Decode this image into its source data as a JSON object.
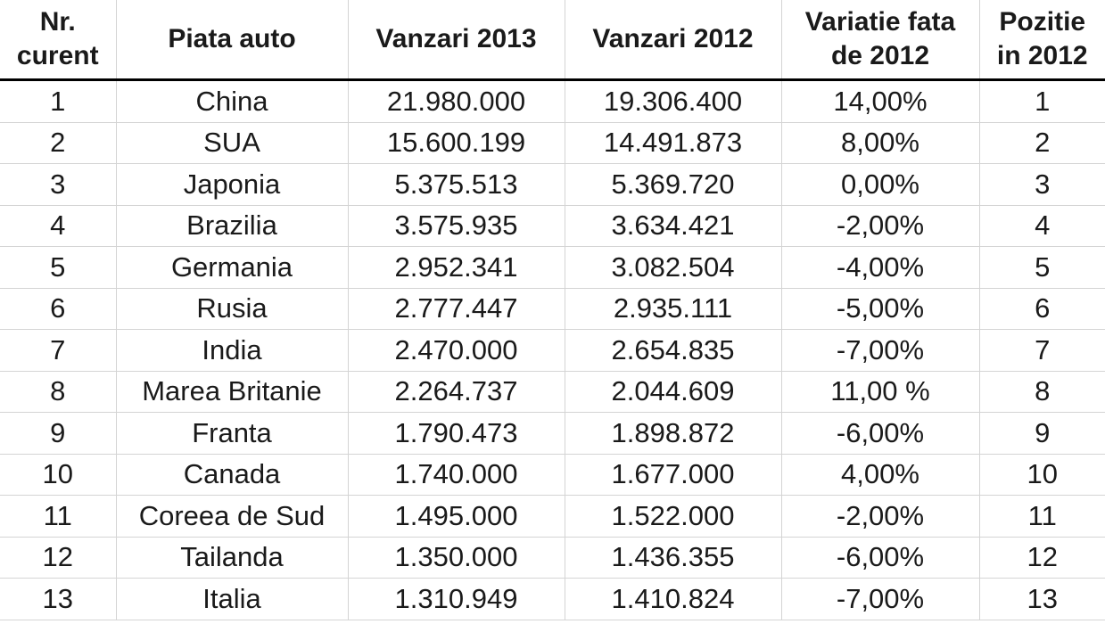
{
  "table": {
    "headers": [
      "Nr.\ncurent",
      "Piata auto",
      "Vanzari 2013",
      "Vanzari 2012",
      "Variatie fata\nde 2012",
      "Pozitie\nin 2012"
    ],
    "rows": [
      [
        "1",
        "China",
        "21.980.000",
        "19.306.400",
        "14,00%",
        "1"
      ],
      [
        "2",
        "SUA",
        "15.600.199",
        "14.491.873",
        "8,00%",
        "2"
      ],
      [
        "3",
        "Japonia",
        "5.375.513",
        "5.369.720",
        "0,00%",
        "3"
      ],
      [
        "4",
        "Brazilia",
        "3.575.935",
        "3.634.421",
        "-2,00%",
        "4"
      ],
      [
        "5",
        "Germania",
        "2.952.341",
        "3.082.504",
        "-4,00%",
        "5"
      ],
      [
        "6",
        "Rusia",
        "2.777.447",
        "2.935.111",
        "-5,00%",
        "6"
      ],
      [
        "7",
        "India",
        "2.470.000",
        "2.654.835",
        "-7,00%",
        "7"
      ],
      [
        "8",
        "Marea Britanie",
        "2.264.737",
        "2.044.609",
        "11,00 %",
        "8"
      ],
      [
        "9",
        "Franta",
        "1.790.473",
        "1.898.872",
        "-6,00%",
        "9"
      ],
      [
        "10",
        "Canada",
        "1.740.000",
        "1.677.000",
        "4,00%",
        "10"
      ],
      [
        "11",
        "Coreea de Sud",
        "1.495.000",
        "1.522.000",
        "-2,00%",
        "11"
      ],
      [
        "12",
        "Tailanda",
        "1.350.000",
        "1.436.355",
        "-6,00%",
        "12"
      ],
      [
        "13",
        "Italia",
        "1.310.949",
        "1.410.824",
        "-7,00%",
        "13"
      ]
    ]
  }
}
